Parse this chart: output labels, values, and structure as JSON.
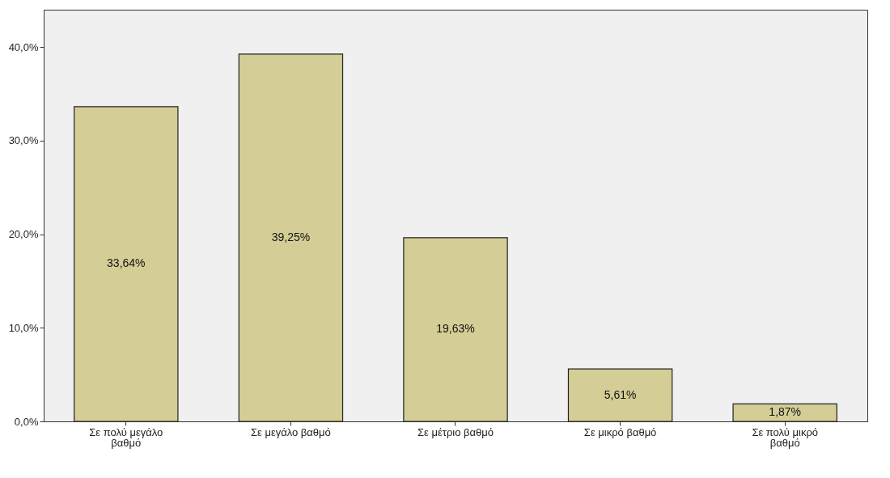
{
  "chart_data": {
    "type": "bar",
    "categories": [
      "Σε πολύ μεγάλο βαθμό",
      "Σε μεγάλο βαθμό",
      "Σε μέτριο βαθμό",
      "Σε μικρό βαθμό",
      "Σε πολύ μικρό βαθμό"
    ],
    "values": [
      33.64,
      39.25,
      19.63,
      5.61,
      1.87
    ],
    "value_labels": [
      "33,64%",
      "39,25%",
      "19,63%",
      "5,61%",
      "1,87%"
    ],
    "color": "#d4cd96",
    "ylim": [
      0,
      44
    ],
    "yticks": [
      {
        "value": 0,
        "label": "0,0%"
      },
      {
        "value": 10,
        "label": "10,0%"
      },
      {
        "value": 20,
        "label": "20,0%"
      },
      {
        "value": 30,
        "label": "30,0%"
      },
      {
        "value": 40,
        "label": "40,0%"
      }
    ],
    "grid": false
  }
}
